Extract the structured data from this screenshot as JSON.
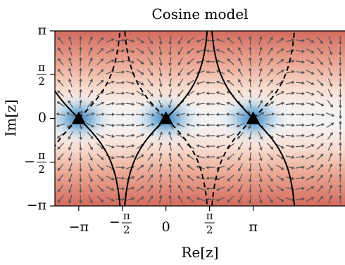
{
  "chart_data": {
    "type": "vector-field",
    "title": "Cosine model",
    "xlabel": "Re[z]",
    "ylabel": "Im[z]",
    "xlim": [
      -4.0,
      6.45
    ],
    "ylim": [
      -3.14159,
      3.14159
    ],
    "x_ticks": [
      {
        "value": -3.14159,
        "label": "−π"
      },
      {
        "value": -1.5708,
        "label": "−π/2"
      },
      {
        "value": 0,
        "label": "0"
      },
      {
        "value": 1.5708,
        "label": "π/2"
      },
      {
        "value": 3.14159,
        "label": "π"
      }
    ],
    "y_ticks": [
      {
        "value": 3.14159,
        "label": "π"
      },
      {
        "value": 1.5708,
        "label": "π/2"
      },
      {
        "value": 0,
        "label": "0"
      },
      {
        "value": -1.5708,
        "label": "−π/2"
      },
      {
        "value": -3.14159,
        "label": "−π"
      }
    ],
    "fixed_points": [
      {
        "x": -3.14159,
        "y": 0
      },
      {
        "x": 0,
        "y": 0
      },
      {
        "x": 3.14159,
        "y": 0
      }
    ],
    "colors": {
      "low": "#3d7fbf",
      "mid": "#f7f6f5",
      "high": "#c9504a",
      "arrow": "#555555",
      "curve": "#000000"
    }
  }
}
